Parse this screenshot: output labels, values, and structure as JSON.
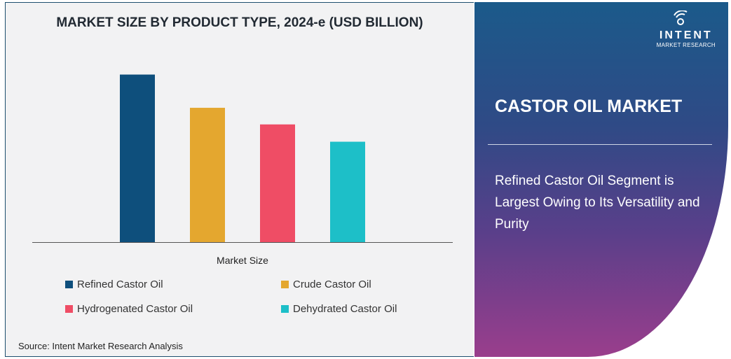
{
  "chart_data": {
    "type": "bar",
    "title": "MARKET SIZE BY PRODUCT TYPE, 2024-e (USD BILLION)",
    "xlabel": "Market Size",
    "ylabel": "",
    "categories": [
      "Refined Castor Oil",
      "Crude Castor Oil",
      "Hydrogenated Castor Oil",
      "Dehydrated Castor Oil"
    ],
    "values": [
      2.42,
      1.94,
      1.7,
      1.45
    ],
    "colors": [
      "#0e4f7c",
      "#e4a72f",
      "#ef4d65",
      "#1dbfc8"
    ],
    "ylim": [
      0,
      2.85
    ],
    "grid": false,
    "legend_position": "bottom"
  },
  "source": "Source: Intent Market Research Analysis",
  "side_panel": {
    "logo_name": "INTENT",
    "logo_sub": "MARKET RESEARCH",
    "title": "CASTOR OIL MARKET",
    "description": "Refined Castor Oil Segment is Largest Owing to Its Versatility and Purity"
  }
}
